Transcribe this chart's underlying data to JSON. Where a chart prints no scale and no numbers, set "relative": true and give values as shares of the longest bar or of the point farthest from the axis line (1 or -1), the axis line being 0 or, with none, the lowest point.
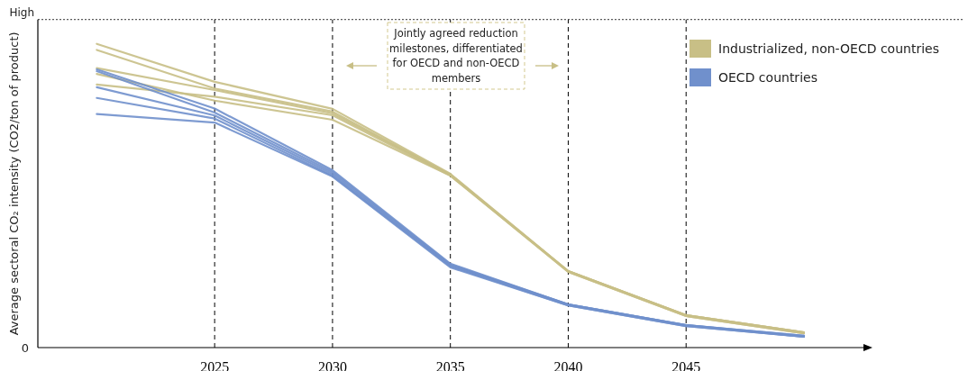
{
  "chart_data": {
    "type": "line",
    "ylabel": "Average sectoral CO₂ intensity (CO2/ton of product)",
    "relative": true,
    "x": [
      2020,
      2025,
      2030,
      2035,
      2040,
      2045,
      2050
    ],
    "xlim": [
      2017.5,
      2052.6
    ],
    "xticks": [
      2025,
      2030,
      2035,
      2040,
      2045
    ],
    "grid": "x",
    "legend": "top right",
    "line_style": "solid",
    "marker": "none",
    "ref_lines": [
      {
        "axis": "y",
        "value": 1.08,
        "label": "High",
        "line_style": "dotted",
        "color": "#333333"
      }
    ],
    "annotations": [
      "0",
      "Jointly agreed reduction milestones, differentiated for OECD and non-OECD members"
    ],
    "series": [
      {
        "name": "Industrialized, non-OECD countries",
        "color": "#c8bf86",
        "values": [
          1.0,
          0.875,
          0.786,
          0.572,
          0.252,
          0.107,
          0.05
        ]
      },
      {
        "color": "#c8bf86",
        "values": [
          0.98,
          0.853,
          0.777,
          0.569,
          0.252,
          0.107,
          0.05
        ]
      },
      {
        "color": "#c8bf86",
        "values": [
          0.92,
          0.848,
          0.771,
          0.569,
          0.249,
          0.104,
          0.047
        ]
      },
      {
        "color": "#c8bf86",
        "values": [
          0.901,
          0.813,
          0.75,
          0.566,
          0.252,
          0.107,
          0.05
        ]
      },
      {
        "color": "#c8bf86",
        "values": [
          0.866,
          0.826,
          0.765,
          0.566,
          0.249,
          0.104,
          0.047
        ]
      },
      {
        "name": "OECD countries",
        "color": "#7090cc",
        "values": [
          0.916,
          0.787,
          0.584,
          0.276,
          0.142,
          0.074,
          0.039
        ]
      },
      {
        "color": "#7090cc",
        "values": [
          0.91,
          0.774,
          0.578,
          0.273,
          0.142,
          0.074,
          0.039
        ]
      },
      {
        "color": "#7090cc",
        "values": [
          0.857,
          0.764,
          0.572,
          0.27,
          0.142,
          0.074,
          0.036
        ]
      },
      {
        "color": "#7090cc",
        "values": [
          0.822,
          0.754,
          0.566,
          0.267,
          0.139,
          0.071,
          0.036
        ]
      },
      {
        "color": "#7090cc",
        "values": [
          0.769,
          0.741,
          0.563,
          0.264,
          0.139,
          0.071,
          0.036
        ]
      }
    ]
  }
}
